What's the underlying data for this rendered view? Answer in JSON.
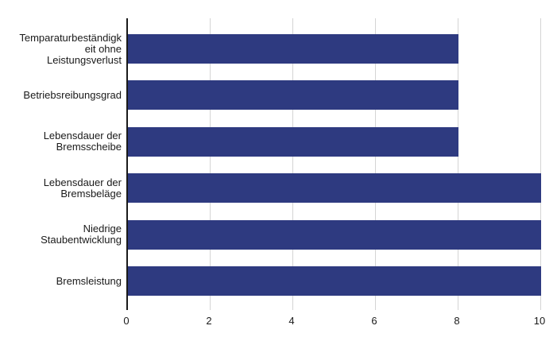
{
  "chart_data": {
    "type": "bar",
    "orientation": "horizontal",
    "title": "",
    "xlabel": "",
    "ylabel": "",
    "categories": [
      "Temparaturbeständigk\neit ohne\nLeistungsverlust",
      "Betriebsreibungsgrad",
      "Lebensdauer der\nBremsscheibe",
      "Lebensdauer der\nBremsbeläge",
      "Niedrige\nStaubentwicklung",
      "Bremsleistung"
    ],
    "values": [
      8,
      8,
      8,
      10,
      10,
      10
    ],
    "x_ticks": [
      0,
      2,
      4,
      6,
      8,
      10
    ],
    "xlim": [
      0,
      10
    ],
    "grid": "vertical-only",
    "legend": "none",
    "bar_color": "#2E3A80",
    "gridline_color": "#D4D4D4",
    "axis_color": "#1A1A1A",
    "text_color": "#1A1A1A",
    "background_color": "#FFFFFF"
  }
}
